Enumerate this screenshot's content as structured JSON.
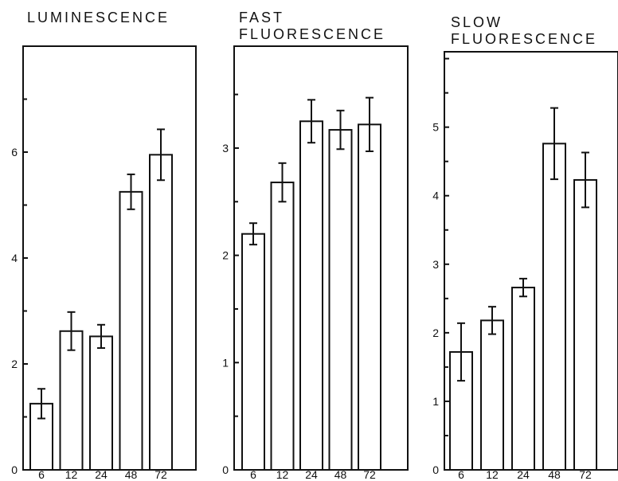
{
  "chart_data": [
    {
      "type": "bar",
      "title": "LUMINESCENCE",
      "categories": [
        "6",
        "12",
        "24",
        "48",
        "72"
      ],
      "values": [
        1.25,
        2.62,
        2.52,
        5.25,
        5.95
      ],
      "errors": [
        0.28,
        0.36,
        0.22,
        0.33,
        0.48
      ],
      "yticks": [
        "0",
        "2",
        "4",
        "6"
      ],
      "ylim": [
        0,
        8
      ],
      "grid": false
    },
    {
      "type": "bar",
      "title": "FAST FLUORESCENCE",
      "title_lines": [
        "FAST",
        "FLUORESCENCE"
      ],
      "categories": [
        "6",
        "12",
        "24",
        "48",
        "72"
      ],
      "values": [
        2.2,
        2.68,
        3.25,
        3.17,
        3.22
      ],
      "errors": [
        0.1,
        0.18,
        0.2,
        0.18,
        0.25
      ],
      "yticks": [
        "0",
        "1",
        "2",
        "3"
      ],
      "ylim": [
        0,
        3.95
      ],
      "grid": false
    },
    {
      "type": "bar",
      "title": "SLOW FLUORESCENCE",
      "title_lines": [
        "SLOW",
        "FLUORESCENCE"
      ],
      "categories": [
        "6",
        "12",
        "24",
        "48",
        "72"
      ],
      "values": [
        1.72,
        2.18,
        2.66,
        4.76,
        4.23
      ],
      "errors": [
        0.42,
        0.2,
        0.13,
        0.52,
        0.4
      ],
      "yticks": [
        "0",
        "1",
        "2",
        "3",
        "4",
        "5"
      ],
      "ylim": [
        0,
        6.1
      ],
      "grid": false
    }
  ]
}
